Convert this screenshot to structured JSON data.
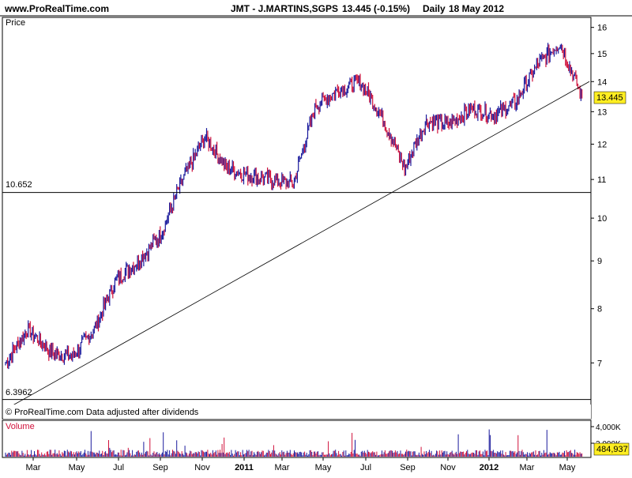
{
  "header": {
    "site": "www.ProRealTime.com",
    "ticker": "JMT - J.MARTINS,SGPS",
    "quote": "13.445 (-0.15%)",
    "period": "Daily",
    "date": "18 May 2012"
  },
  "price_panel": {
    "label": "Price",
    "footnote": "© ProRealTime.com  Data adjusted after dividends",
    "last_price_tag": "13.445",
    "hline_upper_label": "10.652",
    "hline_lower_label": "6.3962"
  },
  "volume_panel": {
    "label": "Volume",
    "last_volume_tag": "484,937",
    "ticks": [
      "4,000K",
      "2,000K"
    ]
  },
  "colors": {
    "up": "#1a1a9c",
    "down": "#d0103a",
    "header_bg": "#ffffff",
    "last_tag_bg": "#ffee22",
    "trend_line": "#000000"
  },
  "chart_data": [
    {
      "type": "line",
      "title": "JMT - J.MARTINS,SGPS Daily",
      "scale": "log",
      "ylim": [
        6.1,
        16.4
      ],
      "y_ticks": [
        7,
        8,
        9,
        10,
        11,
        12,
        13,
        14,
        15,
        16
      ],
      "x_labels": [
        "Mar",
        "May",
        "Jul",
        "Sep",
        "Nov",
        "2011",
        "Mar",
        "May",
        "Jul",
        "Sep",
        "Nov",
        "2012",
        "Mar",
        "May"
      ],
      "x_label_bold": [
        false,
        false,
        false,
        false,
        false,
        true,
        false,
        false,
        false,
        false,
        false,
        true,
        false,
        false
      ],
      "x": [
        "Mar 2010",
        "Apr 2010",
        "May 2010",
        "Jun 2010",
        "Jul 2010",
        "Aug 2010",
        "Sep 2010",
        "Oct 2010",
        "Nov 2010",
        "Dec 2010",
        "Jan 2011",
        "Feb 2011",
        "Mar 2011",
        "Apr 2011",
        "May 2011",
        "Jun 2011",
        "Jul 2011",
        "Aug 2011",
        "Sep 2011",
        "Oct 2011",
        "Nov 2011",
        "Dec 2011",
        "Jan 2012",
        "Feb 2012",
        "Mar 2012",
        "Apr 2012",
        "May 2012"
      ],
      "series": [
        {
          "values": [
            7.0,
            7.6,
            7.2,
            7.1,
            7.6,
            8.6,
            9.0,
            9.6,
            11.0,
            12.2,
            11.3,
            11.1,
            11.0,
            10.9,
            13.2,
            13.7,
            14.0,
            12.8,
            11.3,
            12.7,
            12.6,
            13.1,
            12.9,
            13.3,
            14.6,
            15.4,
            13.445
          ]
        }
      ],
      "horizontal_lines": [
        10.652,
        6.3962
      ],
      "last_value": 13.445,
      "trendline": true
    },
    {
      "type": "bar",
      "title": "Volume",
      "ylim": [
        0,
        4500000
      ],
      "last_value": 484937
    }
  ]
}
